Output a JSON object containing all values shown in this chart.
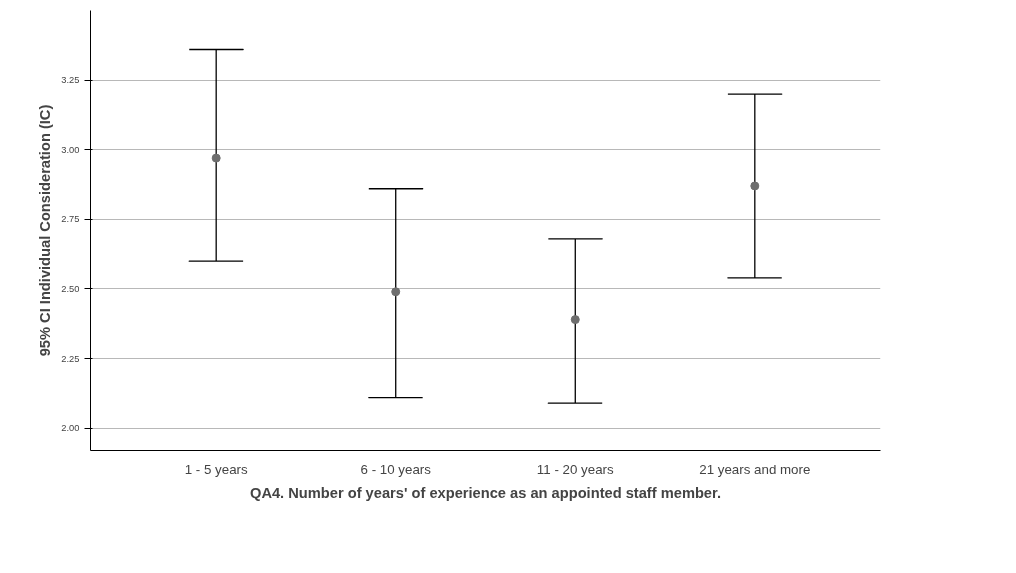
{
  "chart_data": {
    "type": "scatter",
    "xlabel": "QA4. Number of years' of experience as an appointed staff member.",
    "ylabel": "95% CI Individual Consideration (IC)",
    "categories": [
      "1 - 5 years",
      "6 - 10 years",
      "11 - 20 years",
      "21 years and more"
    ],
    "color": "#6e6e6e",
    "values": [
      2.97,
      2.49,
      2.39,
      2.87
    ],
    "errors": [
      [
        2.6,
        3.36
      ],
      [
        2.11,
        2.86
      ],
      [
        2.09,
        2.68
      ],
      [
        2.54,
        3.2
      ]
    ],
    "ylim": [
      1.92,
      3.5
    ],
    "yticks": [
      {
        "value": 2.0,
        "label": "2.00"
      },
      {
        "value": 2.25,
        "label": "2.25"
      },
      {
        "value": 2.5,
        "label": "2.50"
      },
      {
        "value": 2.75,
        "label": "2.75"
      },
      {
        "value": 3.0,
        "label": "3.00"
      },
      {
        "value": 3.25,
        "label": "3.25"
      }
    ],
    "grid": "y",
    "marker": "circle"
  }
}
